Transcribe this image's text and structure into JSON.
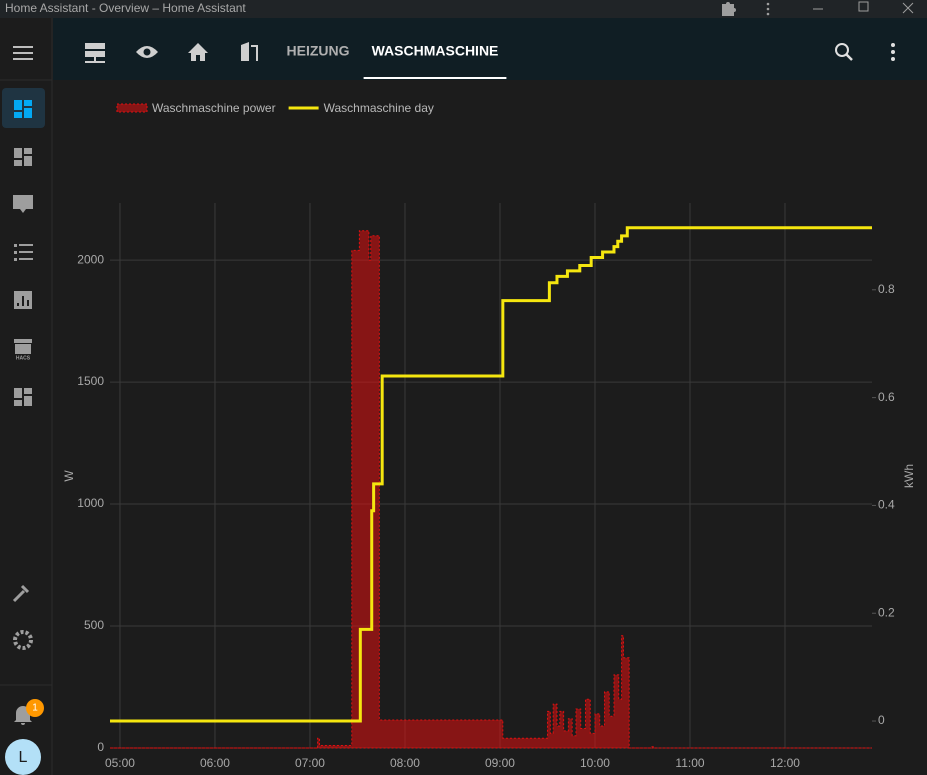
{
  "window": {
    "title": "Home Assistant - Overview – Home Assistant"
  },
  "tabs": [
    "HEIZUNG",
    "WASCHMASCHINE"
  ],
  "active_tab": 1,
  "sidebar": {
    "hacs_label": "HACS",
    "notification_count": 1,
    "user_initial": "L"
  },
  "chart_data": {
    "type": "line",
    "y_label": "W",
    "y2_label": "kWh",
    "grid": true,
    "legend": "top-left",
    "xlim": [
      4.895,
      12.916
    ],
    "xticks": [
      {
        "value": 5,
        "label": "05:00"
      },
      {
        "value": 6,
        "label": "06:00"
      },
      {
        "value": 7,
        "label": "07:00"
      },
      {
        "value": 8,
        "label": "08:00"
      },
      {
        "value": 9,
        "label": "09:00"
      },
      {
        "value": 10,
        "label": "10:00"
      },
      {
        "value": 11,
        "label": "11:00"
      },
      {
        "value": 12,
        "label": "12:00"
      }
    ],
    "ylim": [
      0,
      2234
    ],
    "yticks": [
      0,
      500,
      1000,
      1500,
      2000
    ],
    "y2lim": [
      -0.05,
      0.961
    ],
    "y2ticks": [
      0,
      0.2,
      0.4,
      0.6,
      0.8
    ],
    "series": [
      {
        "name": "Waschmaschine power",
        "type": "step-area",
        "color": "#e01010",
        "x": [
          4.895,
          7.08,
          7.1,
          7.44,
          7.52,
          7.62,
          7.64,
          7.73,
          9.03,
          9.5,
          9.53,
          9.56,
          9.6,
          9.63,
          9.67,
          9.72,
          9.76,
          9.8,
          9.85,
          9.9,
          9.95,
          10.0,
          10.05,
          10.1,
          10.15,
          10.2,
          10.25,
          10.28,
          10.3,
          10.36,
          10.6,
          10.62,
          12.916
        ],
        "values": [
          0,
          40,
          10,
          2040,
          2120,
          2000,
          2100,
          115,
          40,
          150,
          60,
          180,
          90,
          150,
          70,
          120,
          50,
          160,
          80,
          200,
          60,
          140,
          90,
          230,
          130,
          300,
          200,
          460,
          370,
          0,
          5,
          0,
          0
        ]
      },
      {
        "name": "Waschmaschine day",
        "type": "step-line",
        "axis": "y2",
        "color": "#f5e60f",
        "x": [
          4.895,
          7.53,
          7.65,
          7.67,
          7.76,
          9.03,
          9.52,
          9.6,
          9.71,
          9.84,
          9.96,
          10.08,
          10.2,
          10.24,
          10.28,
          10.34,
          12.916
        ],
        "values": [
          0,
          0.17,
          0.39,
          0.44,
          0.64,
          0.78,
          0.813,
          0.825,
          0.835,
          0.845,
          0.86,
          0.87,
          0.88,
          0.89,
          0.9,
          0.915,
          0.915
        ]
      }
    ]
  }
}
